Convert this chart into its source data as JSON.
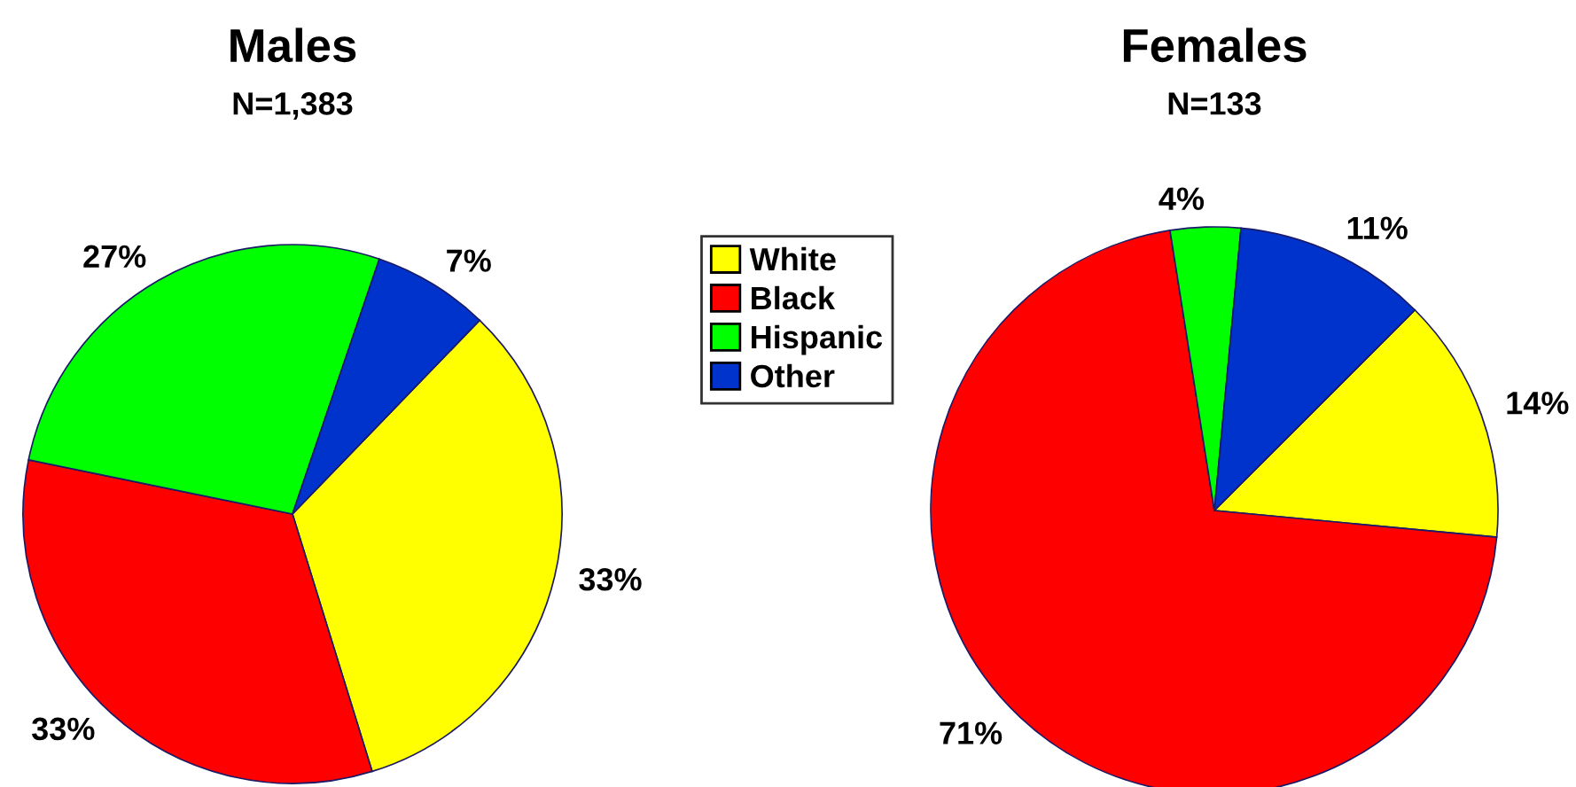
{
  "chart_data": [
    {
      "type": "pie",
      "title": "Males",
      "subtitle": "N=1,383",
      "categories": [
        "White",
        "Black",
        "Hispanic",
        "Other"
      ],
      "values": [
        33,
        33,
        27,
        7
      ],
      "colors": [
        "#ffff00",
        "#ff0000",
        "#00ff00",
        "#0033cc"
      ],
      "value_labels": [
        "33%",
        "33%",
        "27%",
        "7%"
      ],
      "legend": "right"
    },
    {
      "type": "pie",
      "title": "Females",
      "subtitle": "N=133",
      "categories": [
        null,
        null,
        null,
        null
      ],
      "values": [
        14,
        71,
        4,
        11
      ],
      "colors": [
        "#ffff00",
        "#ff0000",
        "#00ff00",
        "#0033cc"
      ],
      "value_labels": [
        "14%",
        "71%",
        "4%",
        "11%"
      ]
    }
  ]
}
